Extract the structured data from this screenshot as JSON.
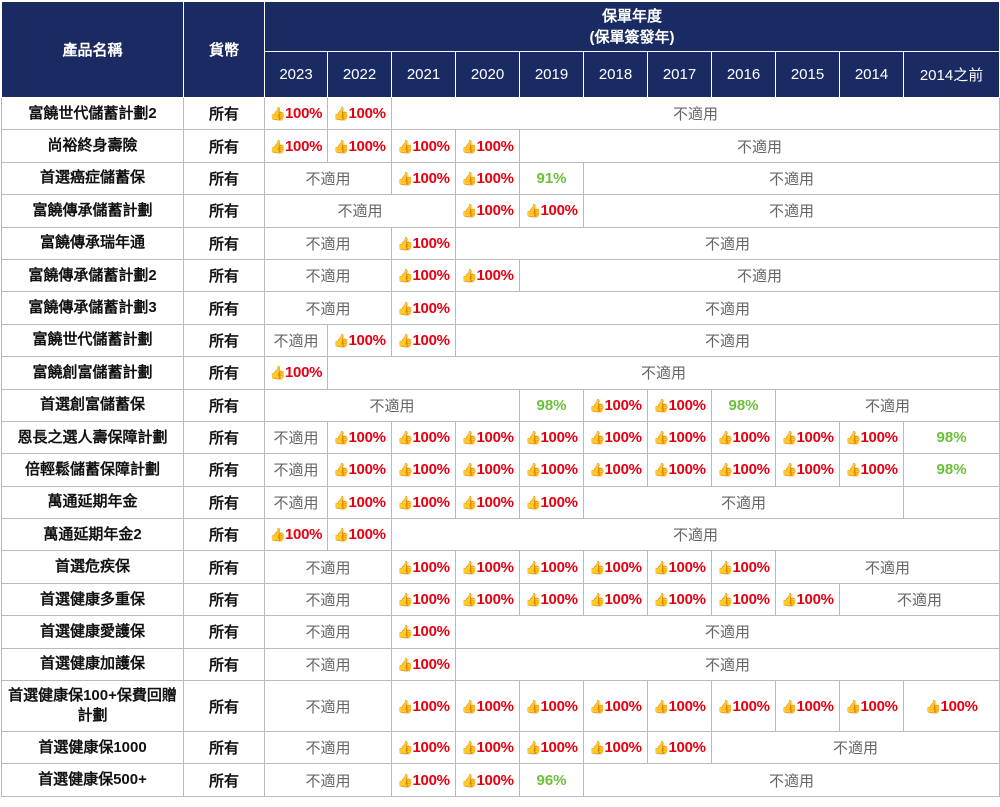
{
  "header": {
    "product_col": "產品名稱",
    "currency_col": "貨幣",
    "year_group_line1": "保單年度",
    "year_group_line2": "(保單簽發年)",
    "years": [
      "2023",
      "2022",
      "2021",
      "2020",
      "2019",
      "2018",
      "2017",
      "2016",
      "2015",
      "2014",
      "2014之前"
    ]
  },
  "cell_styles": {
    "thumb_icon": "thumbs-up-icon",
    "full_color": "#e60012",
    "partial_color": "#6cbf3a",
    "header_bg": "#1a2b63"
  },
  "rows": [
    {
      "name": "富饒世代儲蓄計劃2",
      "currency": "所有",
      "cells": [
        {
          "span": 1,
          "type": "full",
          "text": "100%"
        },
        {
          "span": 1,
          "type": "full",
          "text": "100%"
        },
        {
          "span": 9,
          "type": "na",
          "text": "不適用"
        }
      ]
    },
    {
      "name": "尚裕終身壽險",
      "currency": "所有",
      "cells": [
        {
          "span": 1,
          "type": "full",
          "text": "100%"
        },
        {
          "span": 1,
          "type": "full",
          "text": "100%"
        },
        {
          "span": 1,
          "type": "full",
          "text": "100%"
        },
        {
          "span": 1,
          "type": "full",
          "text": "100%"
        },
        {
          "span": 7,
          "type": "na",
          "text": "不適用"
        }
      ]
    },
    {
      "name": "首選癌症儲蓄保",
      "currency": "所有",
      "cells": [
        {
          "span": 2,
          "type": "na",
          "text": "不適用"
        },
        {
          "span": 1,
          "type": "full",
          "text": "100%"
        },
        {
          "span": 1,
          "type": "full",
          "text": "100%"
        },
        {
          "span": 1,
          "type": "pct",
          "text": "91%"
        },
        {
          "span": 6,
          "type": "na",
          "text": "不適用"
        }
      ]
    },
    {
      "name": "富饒傳承儲蓄計劃",
      "currency": "所有",
      "cells": [
        {
          "span": 3,
          "type": "na",
          "text": "不適用"
        },
        {
          "span": 1,
          "type": "full",
          "text": "100%"
        },
        {
          "span": 1,
          "type": "full",
          "text": "100%"
        },
        {
          "span": 6,
          "type": "na",
          "text": "不適用"
        }
      ]
    },
    {
      "name": "富饒傳承瑞年通",
      "currency": "所有",
      "cells": [
        {
          "span": 2,
          "type": "na",
          "text": "不適用"
        },
        {
          "span": 1,
          "type": "full",
          "text": "100%"
        },
        {
          "span": 8,
          "type": "na",
          "text": "不適用"
        }
      ]
    },
    {
      "name": "富饒傳承儲蓄計劃2",
      "currency": "所有",
      "cells": [
        {
          "span": 2,
          "type": "na",
          "text": "不適用"
        },
        {
          "span": 1,
          "type": "full",
          "text": "100%"
        },
        {
          "span": 1,
          "type": "full",
          "text": "100%"
        },
        {
          "span": 7,
          "type": "na",
          "text": "不適用"
        }
      ]
    },
    {
      "name": "富饒傳承儲蓄計劃3",
      "currency": "所有",
      "cells": [
        {
          "span": 2,
          "type": "na",
          "text": "不適用"
        },
        {
          "span": 1,
          "type": "full",
          "text": "100%"
        },
        {
          "span": 8,
          "type": "na",
          "text": "不適用"
        }
      ]
    },
    {
      "name": "富饒世代儲蓄計劃",
      "currency": "所有",
      "cells": [
        {
          "span": 1,
          "type": "na",
          "text": "不適用"
        },
        {
          "span": 1,
          "type": "full",
          "text": "100%"
        },
        {
          "span": 1,
          "type": "full",
          "text": "100%"
        },
        {
          "span": 8,
          "type": "na",
          "text": "不適用"
        }
      ]
    },
    {
      "name": "富饒創富儲蓄計劃",
      "currency": "所有",
      "cells": [
        {
          "span": 1,
          "type": "full",
          "text": "100%"
        },
        {
          "span": 10,
          "type": "na",
          "text": "不適用"
        }
      ]
    },
    {
      "name": "首選創富儲蓄保",
      "currency": "所有",
      "cells": [
        {
          "span": 4,
          "type": "na",
          "text": "不適用"
        },
        {
          "span": 1,
          "type": "pct",
          "text": "98%"
        },
        {
          "span": 1,
          "type": "full",
          "text": "100%"
        },
        {
          "span": 1,
          "type": "full",
          "text": "100%"
        },
        {
          "span": 1,
          "type": "pct",
          "text": "98%"
        },
        {
          "span": 3,
          "type": "na",
          "text": "不適用"
        }
      ]
    },
    {
      "name": "恩長之選人壽保障計劃",
      "currency": "所有",
      "cells": [
        {
          "span": 1,
          "type": "na",
          "text": "不適用"
        },
        {
          "span": 1,
          "type": "full",
          "text": "100%"
        },
        {
          "span": 1,
          "type": "full",
          "text": "100%"
        },
        {
          "span": 1,
          "type": "full",
          "text": "100%"
        },
        {
          "span": 1,
          "type": "full",
          "text": "100%"
        },
        {
          "span": 1,
          "type": "full",
          "text": "100%"
        },
        {
          "span": 1,
          "type": "full",
          "text": "100%"
        },
        {
          "span": 1,
          "type": "full",
          "text": "100%"
        },
        {
          "span": 1,
          "type": "full",
          "text": "100%"
        },
        {
          "span": 1,
          "type": "full",
          "text": "100%"
        },
        {
          "span": 1,
          "type": "pct",
          "text": "98%"
        }
      ]
    },
    {
      "name": "倍輕鬆儲蓄保障計劃",
      "currency": "所有",
      "cells": [
        {
          "span": 1,
          "type": "na",
          "text": "不適用"
        },
        {
          "span": 1,
          "type": "full",
          "text": "100%"
        },
        {
          "span": 1,
          "type": "full",
          "text": "100%"
        },
        {
          "span": 1,
          "type": "full",
          "text": "100%"
        },
        {
          "span": 1,
          "type": "full",
          "text": "100%"
        },
        {
          "span": 1,
          "type": "full",
          "text": "100%"
        },
        {
          "span": 1,
          "type": "full",
          "text": "100%"
        },
        {
          "span": 1,
          "type": "full",
          "text": "100%"
        },
        {
          "span": 1,
          "type": "full",
          "text": "100%"
        },
        {
          "span": 1,
          "type": "full",
          "text": "100%"
        },
        {
          "span": 1,
          "type": "pct",
          "text": "98%"
        }
      ]
    },
    {
      "name": "萬通延期年金",
      "currency": "所有",
      "cells": [
        {
          "span": 1,
          "type": "na",
          "text": "不適用"
        },
        {
          "span": 1,
          "type": "full",
          "text": "100%"
        },
        {
          "span": 1,
          "type": "full",
          "text": "100%"
        },
        {
          "span": 1,
          "type": "full",
          "text": "100%"
        },
        {
          "span": 1,
          "type": "full",
          "text": "100%"
        },
        {
          "span": 5,
          "type": "na",
          "text": "不適用"
        },
        {
          "span": 1,
          "type": "empty",
          "text": ""
        }
      ]
    },
    {
      "name": "萬通延期年金2",
      "currency": "所有",
      "cells": [
        {
          "span": 1,
          "type": "full",
          "text": "100%"
        },
        {
          "span": 1,
          "type": "full",
          "text": "100%"
        },
        {
          "span": 9,
          "type": "na",
          "text": "不適用"
        }
      ]
    },
    {
      "name": "首選危疾保",
      "currency": "所有",
      "cells": [
        {
          "span": 2,
          "type": "na",
          "text": "不適用"
        },
        {
          "span": 1,
          "type": "full",
          "text": "100%"
        },
        {
          "span": 1,
          "type": "full",
          "text": "100%"
        },
        {
          "span": 1,
          "type": "full",
          "text": "100%"
        },
        {
          "span": 1,
          "type": "full",
          "text": "100%"
        },
        {
          "span": 1,
          "type": "full",
          "text": "100%"
        },
        {
          "span": 1,
          "type": "full",
          "text": "100%"
        },
        {
          "span": 3,
          "type": "na",
          "text": "不適用"
        }
      ]
    },
    {
      "name": "首選健康多重保",
      "currency": "所有",
      "cells": [
        {
          "span": 2,
          "type": "na",
          "text": "不適用"
        },
        {
          "span": 1,
          "type": "full",
          "text": "100%"
        },
        {
          "span": 1,
          "type": "full",
          "text": "100%"
        },
        {
          "span": 1,
          "type": "full",
          "text": "100%"
        },
        {
          "span": 1,
          "type": "full",
          "text": "100%"
        },
        {
          "span": 1,
          "type": "full",
          "text": "100%"
        },
        {
          "span": 1,
          "type": "full",
          "text": "100%"
        },
        {
          "span": 1,
          "type": "full",
          "text": "100%"
        },
        {
          "span": 2,
          "type": "na",
          "text": "不適用"
        }
      ]
    },
    {
      "name": "首選健康愛護保",
      "currency": "所有",
      "cells": [
        {
          "span": 2,
          "type": "na",
          "text": "不適用"
        },
        {
          "span": 1,
          "type": "full",
          "text": "100%"
        },
        {
          "span": 8,
          "type": "na",
          "text": "不適用"
        }
      ]
    },
    {
      "name": "首選健康加護保",
      "currency": "所有",
      "cells": [
        {
          "span": 2,
          "type": "na",
          "text": "不適用"
        },
        {
          "span": 1,
          "type": "full",
          "text": "100%"
        },
        {
          "span": 8,
          "type": "na",
          "text": "不適用"
        }
      ]
    },
    {
      "name": "首選健康保100+保費回贈計劃",
      "currency": "所有",
      "tall": true,
      "cells": [
        {
          "span": 2,
          "type": "na",
          "text": "不適用"
        },
        {
          "span": 1,
          "type": "full",
          "text": "100%"
        },
        {
          "span": 1,
          "type": "full",
          "text": "100%"
        },
        {
          "span": 1,
          "type": "full",
          "text": "100%"
        },
        {
          "span": 1,
          "type": "full",
          "text": "100%"
        },
        {
          "span": 1,
          "type": "full",
          "text": "100%"
        },
        {
          "span": 1,
          "type": "full",
          "text": "100%"
        },
        {
          "span": 1,
          "type": "full",
          "text": "100%"
        },
        {
          "span": 1,
          "type": "full",
          "text": "100%"
        },
        {
          "span": 1,
          "type": "full",
          "text": "100%"
        }
      ]
    },
    {
      "name": "首選健康保1000",
      "currency": "所有",
      "cells": [
        {
          "span": 2,
          "type": "na",
          "text": "不適用"
        },
        {
          "span": 1,
          "type": "full",
          "text": "100%"
        },
        {
          "span": 1,
          "type": "full",
          "text": "100%"
        },
        {
          "span": 1,
          "type": "full",
          "text": "100%"
        },
        {
          "span": 1,
          "type": "full",
          "text": "100%"
        },
        {
          "span": 1,
          "type": "full",
          "text": "100%"
        },
        {
          "span": 4,
          "type": "na",
          "text": "不適用"
        }
      ]
    },
    {
      "name": "首選健康保500+",
      "currency": "所有",
      "cells": [
        {
          "span": 2,
          "type": "na",
          "text": "不適用"
        },
        {
          "span": 1,
          "type": "full",
          "text": "100%"
        },
        {
          "span": 1,
          "type": "full",
          "text": "100%"
        },
        {
          "span": 1,
          "type": "pct",
          "text": "96%"
        },
        {
          "span": 6,
          "type": "na",
          "text": "不適用"
        }
      ]
    }
  ]
}
